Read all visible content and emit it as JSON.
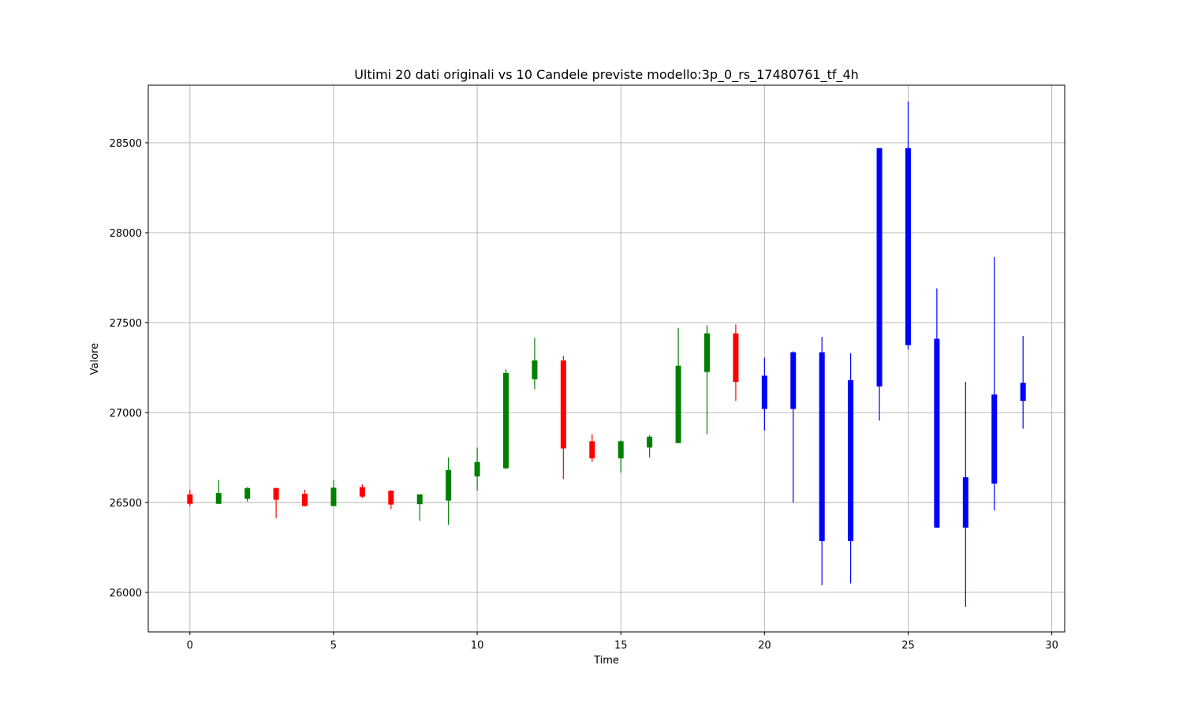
{
  "chart_data": {
    "type": "candlestick",
    "title": "Ultimi 20 dati originali vs 10 Candele previste modello:3p_0_rs_17480761_tf_4h",
    "xlabel": "Time",
    "ylabel": "Valore",
    "xlim": [
      -1.45,
      30.45
    ],
    "ylim": [
      25780,
      28820
    ],
    "xticks": [
      0,
      5,
      10,
      15,
      20,
      25,
      30
    ],
    "xtick_labels": [
      "0",
      "5",
      "10",
      "15",
      "20",
      "25",
      "30"
    ],
    "yticks": [
      26000,
      26500,
      27000,
      27500,
      28000,
      28500
    ],
    "ytick_labels": [
      "26000",
      "26500",
      "27000",
      "27500",
      "28000",
      "28500"
    ],
    "grid": true,
    "colors": {
      "up": "#008000",
      "down": "#ff0000",
      "forecast": "#0000ff",
      "grid": "#b0b0b0",
      "axis": "#000000"
    },
    "series": [
      {
        "candles": [
          {
            "x": 0,
            "open": 26545,
            "high": 26570,
            "low": 26480,
            "close": 26492
          },
          {
            "x": 1,
            "open": 26492,
            "high": 26625,
            "low": 26490,
            "close": 26552
          },
          {
            "x": 2,
            "open": 26520,
            "high": 26585,
            "low": 26505,
            "close": 26580
          },
          {
            "x": 3,
            "open": 26580,
            "high": 26580,
            "low": 26412,
            "close": 26515
          },
          {
            "x": 4,
            "open": 26548,
            "high": 26570,
            "low": 26478,
            "close": 26480
          },
          {
            "x": 5,
            "open": 26480,
            "high": 26625,
            "low": 26478,
            "close": 26582
          },
          {
            "x": 6,
            "open": 26585,
            "high": 26600,
            "low": 26525,
            "close": 26532
          },
          {
            "x": 7,
            "open": 26565,
            "high": 26568,
            "low": 26462,
            "close": 26488
          },
          {
            "x": 8,
            "open": 26490,
            "high": 26545,
            "low": 26398,
            "close": 26545
          },
          {
            "x": 9,
            "open": 26510,
            "high": 26750,
            "low": 26375,
            "close": 26680
          },
          {
            "x": 10,
            "open": 26645,
            "high": 26805,
            "low": 26565,
            "close": 26725
          },
          {
            "x": 11,
            "open": 26690,
            "high": 27240,
            "low": 26685,
            "close": 27220
          },
          {
            "x": 12,
            "open": 27185,
            "high": 27415,
            "low": 27130,
            "close": 27290
          },
          {
            "x": 13,
            "open": 27290,
            "high": 27315,
            "low": 26630,
            "close": 26800
          },
          {
            "x": 14,
            "open": 26840,
            "high": 26880,
            "low": 26725,
            "close": 26745
          },
          {
            "x": 15,
            "open": 26745,
            "high": 26845,
            "low": 26665,
            "close": 26840
          },
          {
            "x": 16,
            "open": 26805,
            "high": 26875,
            "low": 26750,
            "close": 26865
          },
          {
            "x": 17,
            "open": 26830,
            "high": 27470,
            "low": 26830,
            "close": 27260
          },
          {
            "x": 18,
            "open": 27225,
            "high": 27485,
            "low": 26880,
            "close": 27440
          },
          {
            "x": 19,
            "open": 27440,
            "high": 27490,
            "low": 27065,
            "close": 27170
          }
        ]
      },
      {
        "candles": [
          {
            "x": 20,
            "open": 27205,
            "high": 27305,
            "low": 26900,
            "close": 27020
          },
          {
            "x": 21,
            "open": 27335,
            "high": 27340,
            "low": 26500,
            "close": 27020
          },
          {
            "x": 22,
            "open": 27335,
            "high": 27420,
            "low": 26040,
            "close": 26285
          },
          {
            "x": 23,
            "open": 27180,
            "high": 27330,
            "low": 26050,
            "close": 26285
          },
          {
            "x": 24,
            "open": 28470,
            "high": 28470,
            "low": 26955,
            "close": 27145
          },
          {
            "x": 25,
            "open": 28470,
            "high": 28730,
            "low": 27350,
            "close": 27375
          },
          {
            "x": 26,
            "open": 27410,
            "high": 27690,
            "low": 26360,
            "close": 26360
          },
          {
            "x": 27,
            "open": 26640,
            "high": 27170,
            "low": 25920,
            "close": 26360
          },
          {
            "x": 28,
            "open": 27100,
            "high": 27865,
            "low": 26455,
            "close": 26605
          },
          {
            "x": 29,
            "open": 27165,
            "high": 27425,
            "low": 26910,
            "close": 27065
          }
        ]
      }
    ]
  }
}
